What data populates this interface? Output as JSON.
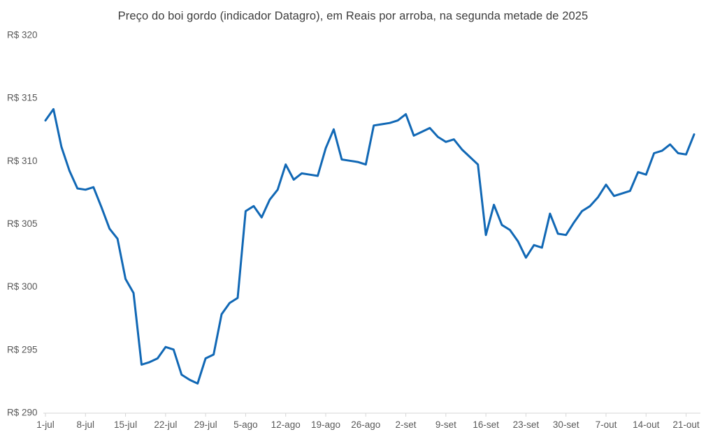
{
  "chart_data": {
    "type": "line",
    "title": "Preço do boi gordo (indicador Datagro), em Reais por arroba, na segunda metade de 2025",
    "currency_prefix": "R$",
    "ylim": [
      290,
      320
    ],
    "y_ticks": [
      290,
      295,
      300,
      305,
      310,
      315,
      320
    ],
    "x_tick_every": 5,
    "x_tick_labels": [
      "1-jul",
      "8-jul",
      "15-jul",
      "22-jul",
      "29-jul",
      "5-ago",
      "12-ago",
      "19-ago",
      "26-ago",
      "2-set",
      "9-set",
      "16-set",
      "23-set",
      "30-set",
      "7-out",
      "14-out",
      "21-out"
    ],
    "grid": false,
    "legend": "none",
    "line_color": "#1168b5",
    "axis_color": "#d6d6d6",
    "series": [
      {
        "name": "Preço do boi gordo (indicador Datagro)",
        "unit": "Reais por arroba",
        "dates": [
          "1-jul",
          "2-jul",
          "3-jul",
          "4-jul",
          "7-jul",
          "8-jul",
          "9-jul",
          "10-jul",
          "11-jul",
          "14-jul",
          "15-jul",
          "16-jul",
          "17-jul",
          "18-jul",
          "21-jul",
          "22-jul",
          "23-jul",
          "24-jul",
          "25-jul",
          "28-jul",
          "29-jul",
          "30-jul",
          "31-jul",
          "1-ago",
          "4-ago",
          "5-ago",
          "6-ago",
          "7-ago",
          "8-ago",
          "11-ago",
          "12-ago",
          "13-ago",
          "14-ago",
          "15-ago",
          "18-ago",
          "19-ago",
          "20-ago",
          "21-ago",
          "22-ago",
          "25-ago",
          "26-ago",
          "27-ago",
          "28-ago",
          "29-ago",
          "1-set",
          "2-set",
          "3-set",
          "4-set",
          "5-set",
          "8-set",
          "9-set",
          "10-set",
          "11-set",
          "12-set",
          "15-set",
          "16-set",
          "17-set",
          "18-set",
          "19-set",
          "22-set",
          "23-set",
          "24-set",
          "25-set",
          "26-set",
          "29-set",
          "30-set",
          "1-out",
          "2-out",
          "3-out",
          "6-out",
          "7-out",
          "8-out",
          "9-out",
          "10-out",
          "13-out",
          "14-out",
          "15-out",
          "16-out",
          "17-out",
          "20-out",
          "21-out",
          "22-out"
        ],
        "values": [
          313.2,
          314.1,
          311.1,
          309.2,
          307.8,
          307.7,
          307.9,
          306.3,
          304.6,
          303.8,
          300.6,
          299.5,
          293.8,
          294.0,
          294.3,
          295.2,
          295.0,
          293.0,
          292.6,
          292.3,
          294.3,
          294.6,
          297.8,
          298.7,
          299.1,
          306.0,
          306.4,
          305.5,
          306.9,
          307.7,
          309.7,
          308.5,
          309.0,
          308.9,
          308.8,
          311.0,
          312.5,
          310.1,
          310.0,
          309.9,
          309.7,
          312.8,
          312.9,
          313.0,
          313.2,
          313.7,
          312.0,
          312.3,
          312.6,
          311.9,
          311.5,
          311.7,
          310.9,
          310.3,
          309.7,
          304.1,
          306.5,
          304.9,
          304.5,
          303.6,
          302.3,
          303.3,
          303.1,
          305.8,
          304.2,
          304.1,
          305.1,
          306.0,
          306.4,
          307.1,
          308.1,
          307.2,
          307.4,
          307.6,
          309.1,
          308.9,
          310.6,
          310.8,
          311.3,
          310.6,
          310.5,
          312.1
        ]
      }
    ]
  }
}
